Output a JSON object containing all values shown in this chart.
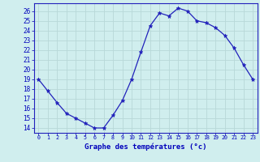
{
  "hours": [
    0,
    1,
    2,
    3,
    4,
    5,
    6,
    7,
    8,
    9,
    10,
    11,
    12,
    13,
    14,
    15,
    16,
    17,
    18,
    19,
    20,
    21,
    22,
    23
  ],
  "temps": [
    19.0,
    17.8,
    16.6,
    15.5,
    15.0,
    14.5,
    14.0,
    14.0,
    15.3,
    16.8,
    19.0,
    21.8,
    24.5,
    25.8,
    25.5,
    26.3,
    26.0,
    25.0,
    24.8,
    24.3,
    23.5,
    22.2,
    20.5,
    19.0
  ],
  "xlim": [
    -0.5,
    23.5
  ],
  "ylim": [
    13.5,
    26.8
  ],
  "yticks": [
    14,
    15,
    16,
    17,
    18,
    19,
    20,
    21,
    22,
    23,
    24,
    25,
    26
  ],
  "xtick_labels": [
    "0",
    "1",
    "2",
    "3",
    "4",
    "5",
    "6",
    "7",
    "8",
    "9",
    "10",
    "11",
    "12",
    "13",
    "14",
    "15",
    "16",
    "17",
    "18",
    "19",
    "20",
    "21",
    "22",
    "23"
  ],
  "xlabel": "Graphe des températures (°c)",
  "line_color": "#2222bb",
  "marker_color": "#2222bb",
  "bg_color": "#d0eeee",
  "grid_color": "#b8d8d8",
  "axis_label_color": "#0000bb",
  "tick_label_color": "#0000bb"
}
